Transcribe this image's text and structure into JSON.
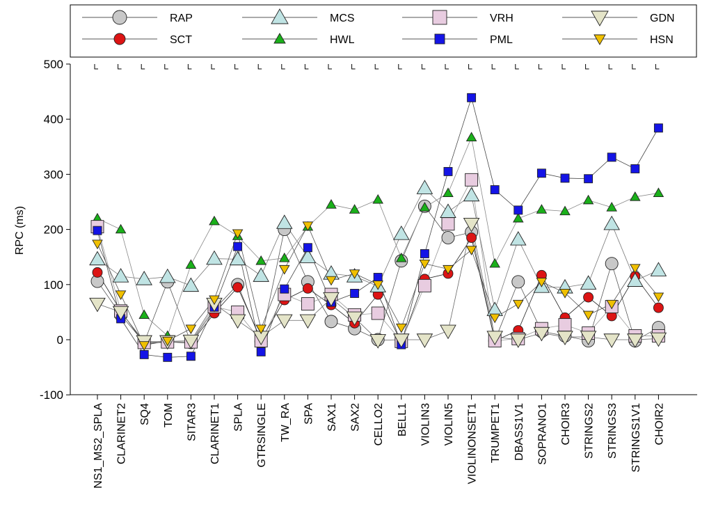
{
  "chart_data": {
    "type": "line",
    "ylabel": "RPC (ms)",
    "xlabel": "",
    "ylim": [
      -100,
      500
    ],
    "yticks": [
      -100,
      0,
      100,
      200,
      300,
      400,
      500
    ],
    "grid": false,
    "legend_position": "top",
    "categories": [
      "NS1_MS2_SPLA",
      "CLARINET2",
      "SQ4",
      "TOM",
      "SITAR3",
      "CLARINET1",
      "SPLA",
      "GTRSINGLE",
      "TW_RA",
      "SPA",
      "SAX1",
      "SAX2",
      "CELLO2",
      "BELL1",
      "VIOLIN3",
      "VIOLIN5",
      "VIOLINONSET1",
      "TRUMPET1",
      "DBASS1V1",
      "SOPRANO1",
      "CHOIR3",
      "STRINGS2",
      "STRINGS3",
      "STRINGS1V1",
      "CHOIR2"
    ],
    "series": [
      {
        "name": "RAP",
        "marker": "circle",
        "fill": "#c8c8c8",
        "size": 9,
        "values": [
          106,
          45,
          -5,
          105,
          -5,
          55,
          100,
          -3,
          200,
          105,
          33,
          20,
          0,
          143,
          242,
          185,
          195,
          -2,
          105,
          15,
          7,
          -2,
          138,
          -2,
          22
        ]
      },
      {
        "name": "SCT",
        "marker": "circle",
        "fill": "#dc1414",
        "size": 7,
        "values": [
          122,
          52,
          -7,
          -4,
          -6,
          48,
          95,
          0,
          72,
          93,
          63,
          30,
          82,
          -5,
          110,
          120,
          185,
          -2,
          17,
          117,
          40,
          77,
          43,
          115,
          58
        ]
      },
      {
        "name": "MCS",
        "marker": "triangle-up",
        "fill": "#c0e4e4",
        "size": 11,
        "values": [
          146,
          115,
          110,
          114,
          98,
          147,
          146,
          116,
          212,
          150,
          120,
          115,
          97,
          192,
          275,
          232,
          262,
          54,
          182,
          96,
          95,
          102,
          210,
          107,
          126
        ]
      },
      {
        "name": "HWL",
        "marker": "triangle-up",
        "fill": "#1ab01a",
        "size": 7,
        "values": [
          220,
          200,
          45,
          7,
          136,
          215,
          188,
          143,
          148,
          205,
          245,
          236,
          254,
          148,
          240,
          266,
          367,
          138,
          220,
          236,
          233,
          253,
          240,
          259,
          266
        ]
      },
      {
        "name": "VRH",
        "marker": "square",
        "fill": "#e8cce0",
        "size": 9,
        "values": [
          205,
          52,
          -5,
          -4,
          -4,
          60,
          50,
          -2,
          82,
          65,
          82,
          45,
          48,
          -3,
          98,
          210,
          290,
          -2,
          2,
          20,
          27,
          12,
          60,
          7,
          7
        ]
      },
      {
        "name": "PML",
        "marker": "square",
        "fill": "#1414e6",
        "size": 6,
        "values": [
          198,
          38,
          -27,
          -32,
          -30,
          59,
          169,
          -22,
          92,
          167,
          68,
          84,
          113,
          -9,
          156,
          305,
          439,
          272,
          235,
          302,
          293,
          292,
          331,
          310,
          384
        ]
      },
      {
        "name": "GDN",
        "marker": "triangle-down",
        "fill": "#e4e4c8",
        "size": 11,
        "values": [
          65,
          50,
          -3,
          -3,
          -2,
          65,
          35,
          5,
          35,
          35,
          75,
          40,
          -1,
          0,
          0,
          16,
          210,
          5,
          0,
          12,
          5,
          5,
          0,
          0,
          2
        ]
      },
      {
        "name": "HSN",
        "marker": "triangle-down",
        "fill": "#f0c000",
        "size": 7,
        "values": [
          174,
          82,
          -10,
          -2,
          20,
          73,
          193,
          20,
          128,
          207,
          108,
          120,
          100,
          22,
          138,
          128,
          163,
          40,
          65,
          105,
          85,
          45,
          65,
          130,
          78
        ]
      }
    ]
  }
}
